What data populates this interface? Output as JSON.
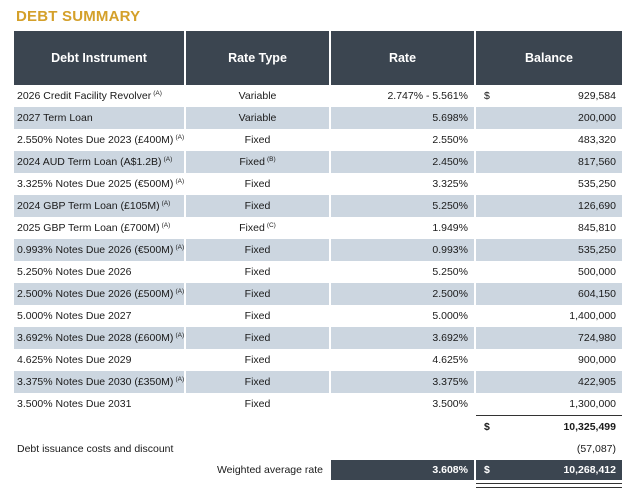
{
  "title": "DEBT SUMMARY",
  "headers": {
    "instrument": "Debt Instrument",
    "rate_type": "Rate Type",
    "rate": "Rate",
    "balance": "Balance"
  },
  "rows": [
    {
      "instrument": "2026 Credit Facility Revolver",
      "note": "(A)",
      "rate_type": "Variable",
      "rate_type_note": "",
      "rate": "2.747% - 5.561%",
      "currency": "$",
      "balance": "929,584"
    },
    {
      "instrument": "2027 Term Loan",
      "note": "",
      "rate_type": "Variable",
      "rate_type_note": "",
      "rate": "5.698%",
      "currency": "",
      "balance": "200,000"
    },
    {
      "instrument": "2.550% Notes Due 2023 (£400M)",
      "note": "(A)",
      "rate_type": "Fixed",
      "rate_type_note": "",
      "rate": "2.550%",
      "currency": "",
      "balance": "483,320"
    },
    {
      "instrument": "2024 AUD Term Loan (A$1.2B)",
      "note": "(A)",
      "rate_type": "Fixed",
      "rate_type_note": "(B)",
      "rate": "2.450%",
      "currency": "",
      "balance": "817,560"
    },
    {
      "instrument": "3.325% Notes Due 2025 (€500M)",
      "note": "(A)",
      "rate_type": "Fixed",
      "rate_type_note": "",
      "rate": "3.325%",
      "currency": "",
      "balance": "535,250"
    },
    {
      "instrument": "2024 GBP Term Loan (£105M)",
      "note": "(A)",
      "rate_type": "Fixed",
      "rate_type_note": "",
      "rate": "5.250%",
      "currency": "",
      "balance": "126,690"
    },
    {
      "instrument": "2025 GBP Term Loan (£700M)",
      "note": "(A)",
      "rate_type": "Fixed",
      "rate_type_note": "(C)",
      "rate": "1.949%",
      "currency": "",
      "balance": "845,810"
    },
    {
      "instrument": "0.993% Notes Due 2026 (€500M)",
      "note": "(A)",
      "rate_type": "Fixed",
      "rate_type_note": "",
      "rate": "0.993%",
      "currency": "",
      "balance": "535,250"
    },
    {
      "instrument": "5.250% Notes Due 2026",
      "note": "",
      "rate_type": "Fixed",
      "rate_type_note": "",
      "rate": "5.250%",
      "currency": "",
      "balance": "500,000"
    },
    {
      "instrument": "2.500% Notes Due 2026 (£500M)",
      "note": "(A)",
      "rate_type": "Fixed",
      "rate_type_note": "",
      "rate": "2.500%",
      "currency": "",
      "balance": "604,150"
    },
    {
      "instrument": "5.000% Notes Due 2027",
      "note": "",
      "rate_type": "Fixed",
      "rate_type_note": "",
      "rate": "5.000%",
      "currency": "",
      "balance": "1,400,000"
    },
    {
      "instrument": "3.692% Notes Due 2028 (£600M)",
      "note": "(A)",
      "rate_type": "Fixed",
      "rate_type_note": "",
      "rate": "3.692%",
      "currency": "",
      "balance": "724,980"
    },
    {
      "instrument": "4.625% Notes Due 2029",
      "note": "",
      "rate_type": "Fixed",
      "rate_type_note": "",
      "rate": "4.625%",
      "currency": "",
      "balance": "900,000"
    },
    {
      "instrument": "3.375% Notes Due 2030 (£350M)",
      "note": "(A)",
      "rate_type": "Fixed",
      "rate_type_note": "",
      "rate": "3.375%",
      "currency": "",
      "balance": "422,905"
    },
    {
      "instrument": "3.500% Notes Due 2031",
      "note": "",
      "rate_type": "Fixed",
      "rate_type_note": "",
      "rate": "3.500%",
      "currency": "",
      "balance": "1,300,000"
    }
  ],
  "subtotal": {
    "currency": "$",
    "balance": "10,325,499"
  },
  "costs": {
    "label": "Debt issuance costs and discount",
    "balance": "(57,087)"
  },
  "weighted": {
    "label": "Weighted average rate",
    "rate": "3.608%",
    "currency": "$",
    "balance": "10,268,412"
  },
  "colors": {
    "title": "#d4a02a",
    "header_bg": "#3b4550",
    "band": "#ccd6e0"
  }
}
